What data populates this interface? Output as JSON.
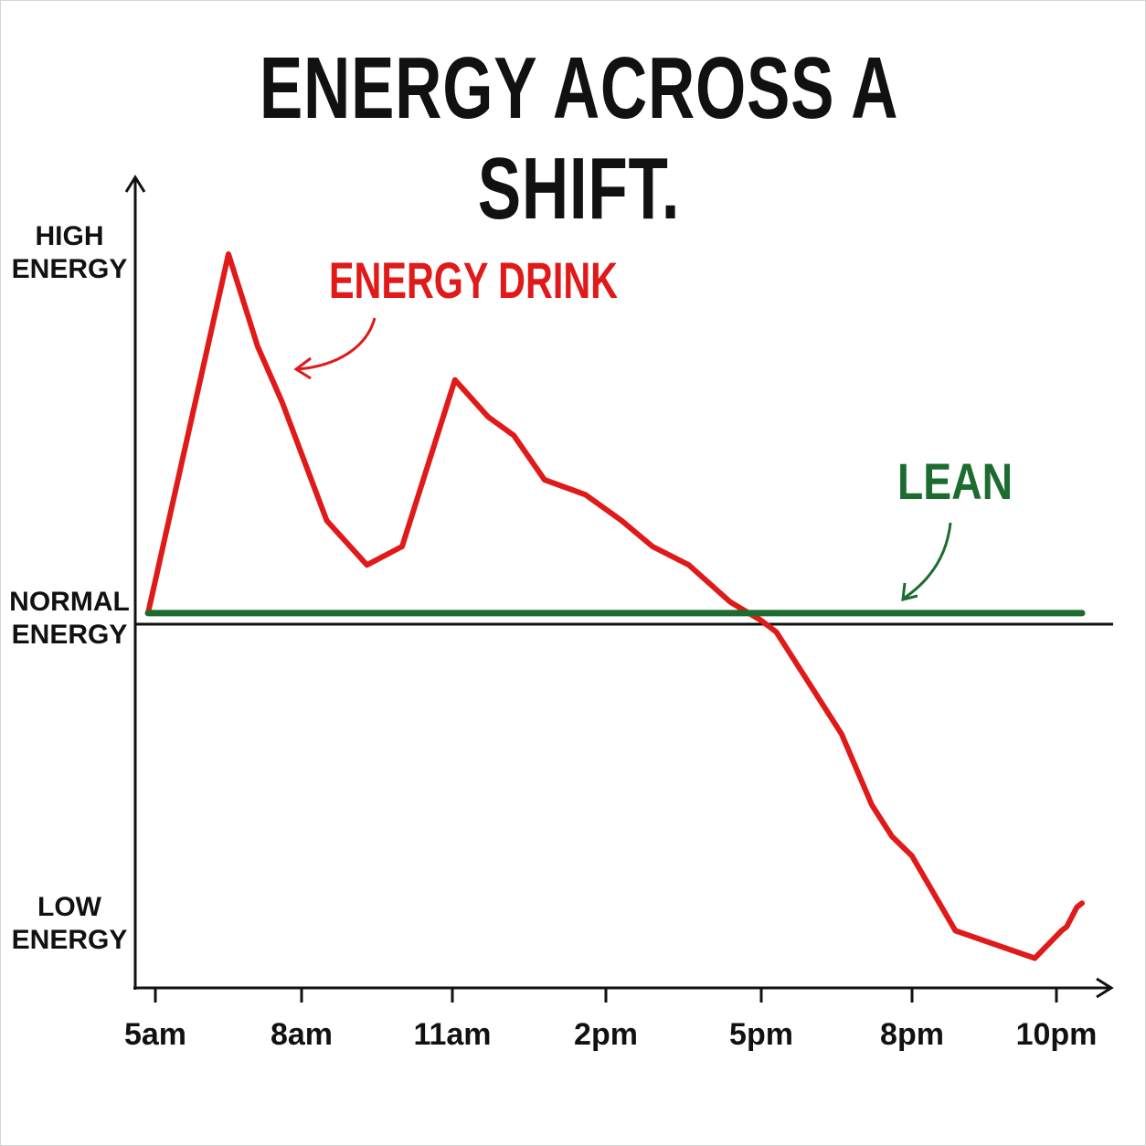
{
  "chart_data": {
    "type": "line",
    "title": "ENERGY ACROSS A SHIFT.",
    "xlabel": "",
    "ylabel": "",
    "y_categories": [
      {
        "label": [
          "HIGH",
          "ENERGY"
        ],
        "value": 1
      },
      {
        "label": [
          "NORMAL",
          "ENERGY"
        ],
        "value": 0
      },
      {
        "label": [
          "LOW",
          "ENERGY"
        ],
        "value": -1
      }
    ],
    "x_ticks": [
      {
        "label": "5am",
        "hour": 5
      },
      {
        "label": "8am",
        "hour": 8
      },
      {
        "label": "11am",
        "hour": 11
      },
      {
        "label": "2pm",
        "hour": 14
      },
      {
        "label": "5pm",
        "hour": 17
      },
      {
        "label": "8pm",
        "hour": 20
      },
      {
        "label": "10pm",
        "hour": 22
      }
    ],
    "xlim": [
      4.75,
      23.1
    ],
    "ylim": [
      -1.2,
      1.3
    ],
    "grid": false,
    "series": [
      {
        "name": "ENERGY DRINK",
        "color": "#e01919",
        "points": [
          [
            4.85,
            0.03
          ],
          [
            6.5,
            1.0
          ],
          [
            7.1,
            0.75
          ],
          [
            7.6,
            0.6
          ],
          [
            8.5,
            0.28
          ],
          [
            9.3,
            0.16
          ],
          [
            10.0,
            0.21
          ],
          [
            11.05,
            0.66
          ],
          [
            11.7,
            0.56
          ],
          [
            12.2,
            0.51
          ],
          [
            12.8,
            0.39
          ],
          [
            13.6,
            0.35
          ],
          [
            14.3,
            0.28
          ],
          [
            14.9,
            0.21
          ],
          [
            15.6,
            0.16
          ],
          [
            16.4,
            0.06
          ],
          [
            17.0,
            0.01
          ],
          [
            17.3,
            -0.02
          ],
          [
            18.0,
            -0.16
          ],
          [
            18.6,
            -0.28
          ],
          [
            19.2,
            -0.46
          ],
          [
            19.6,
            -0.54
          ],
          [
            20.0,
            -0.59
          ],
          [
            20.6,
            -0.78
          ],
          [
            21.7,
            -0.85
          ],
          [
            22.2,
            -0.78
          ],
          [
            22.4,
            -0.77
          ],
          [
            22.8,
            -0.72
          ],
          [
            23.0,
            -0.71
          ]
        ]
      },
      {
        "name": "LEAN",
        "color": "#1c6b2f",
        "points": [
          [
            4.85,
            0.03
          ],
          [
            7.0,
            0.03
          ],
          [
            9.3,
            0.03
          ],
          [
            11.3,
            0.03
          ],
          [
            14.0,
            0.03
          ],
          [
            16.8,
            0.03
          ],
          [
            19.2,
            0.03
          ],
          [
            21.4,
            0.03
          ],
          [
            23.0,
            0.03
          ]
        ]
      }
    ]
  }
}
